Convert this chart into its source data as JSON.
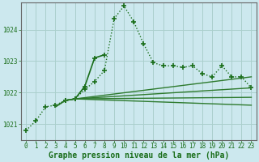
{
  "background_color": "#cce8ee",
  "grid_color": "#aacfcc",
  "xlabel": "Graphe pression niveau de la mer (hPa)",
  "xlabel_fontsize": 7,
  "yticks": [
    1021,
    1022,
    1023,
    1024
  ],
  "xticks": [
    0,
    1,
    2,
    3,
    4,
    5,
    6,
    7,
    8,
    9,
    10,
    11,
    12,
    13,
    14,
    15,
    16,
    17,
    18,
    19,
    20,
    21,
    22,
    23
  ],
  "xlim": [
    -0.5,
    23.5
  ],
  "ylim": [
    1020.5,
    1024.85
  ],
  "series": [
    {
      "x": [
        0,
        1,
        2,
        3,
        4,
        5,
        6,
        7,
        8,
        9,
        10,
        11,
        12,
        13,
        14,
        15,
        16,
        17,
        18,
        19,
        20,
        21,
        22,
        23
      ],
      "y": [
        1020.8,
        1021.1,
        1021.55,
        1021.6,
        1021.75,
        1021.8,
        1022.1,
        1022.35,
        1022.7,
        1024.35,
        1024.75,
        1024.25,
        1023.55,
        1022.95,
        1022.85,
        1022.85,
        1022.8,
        1022.85,
        1022.6,
        1022.5,
        1022.85,
        1022.5,
        1022.5,
        1022.15
      ],
      "linestyle": "dotted",
      "marker": "+",
      "markersize": 5,
      "linewidth": 1.0,
      "color": "#1a6e1a"
    },
    {
      "x": [
        4,
        5,
        6,
        7,
        8
      ],
      "y": [
        1021.75,
        1021.8,
        1022.2,
        1023.1,
        1023.2
      ],
      "linestyle": "solid",
      "marker": "+",
      "markersize": 5,
      "linewidth": 1.2,
      "color": "#1a6e1a"
    },
    {
      "x": [
        3,
        4,
        5,
        23
      ],
      "y": [
        1021.55,
        1021.75,
        1021.8,
        1022.5
      ],
      "linestyle": "solid",
      "marker": null,
      "markersize": 0,
      "linewidth": 1.0,
      "color": "#2d7a2d"
    },
    {
      "x": [
        3,
        4,
        5,
        23
      ],
      "y": [
        1021.55,
        1021.75,
        1021.8,
        1022.15
      ],
      "linestyle": "solid",
      "marker": null,
      "markersize": 0,
      "linewidth": 1.0,
      "color": "#2d7a2d"
    },
    {
      "x": [
        3,
        4,
        5,
        23
      ],
      "y": [
        1021.55,
        1021.75,
        1021.8,
        1021.85
      ],
      "linestyle": "solid",
      "marker": null,
      "markersize": 0,
      "linewidth": 1.0,
      "color": "#2d7a2d"
    },
    {
      "x": [
        3,
        4,
        5,
        23
      ],
      "y": [
        1021.55,
        1021.75,
        1021.8,
        1021.6
      ],
      "linestyle": "solid",
      "marker": null,
      "markersize": 0,
      "linewidth": 1.0,
      "color": "#2d7a2d"
    }
  ]
}
